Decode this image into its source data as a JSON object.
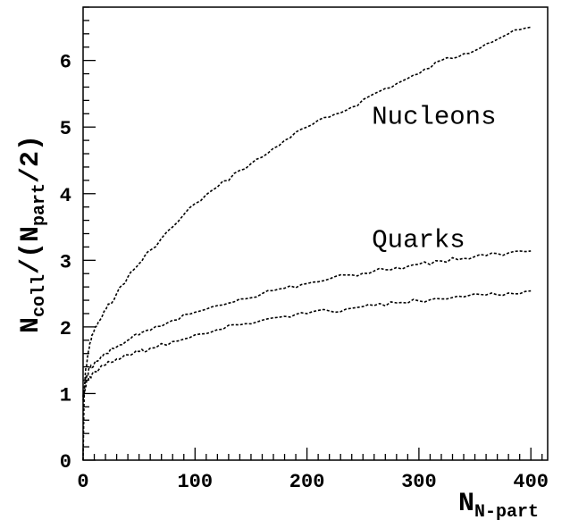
{
  "chart_data": {
    "type": "line",
    "title": "",
    "xlabel_main": "N",
    "xlabel_sub": "N-part",
    "ylabel_main": "N",
    "ylabel_sub1": "coll",
    "ylabel_mid": "/(N",
    "ylabel_sub2": "part",
    "ylabel_end": "/2)",
    "xlim": [
      0,
      415
    ],
    "ylim": [
      0,
      6.8
    ],
    "xticks": [
      "0",
      "100",
      "200",
      "300",
      "400"
    ],
    "yticks": [
      "0",
      "1",
      "2",
      "3",
      "4",
      "5",
      "6"
    ],
    "grid": false,
    "annotations": [
      {
        "text": "Nucleons",
        "x": 258,
        "y": 5.05
      },
      {
        "text": "Quarks",
        "x": 258,
        "y": 3.2
      }
    ],
    "series": [
      {
        "x": [
          0,
          1,
          2,
          4,
          6,
          10,
          15,
          20,
          30,
          40,
          50,
          60,
          80,
          100,
          120,
          140,
          160,
          180,
          200,
          220,
          240,
          260,
          280,
          300,
          320,
          340,
          360,
          380,
          400
        ],
        "values": [
          0,
          1.0,
          1.3,
          1.55,
          1.75,
          1.95,
          2.1,
          2.25,
          2.5,
          2.75,
          2.95,
          3.15,
          3.5,
          3.85,
          4.1,
          4.35,
          4.55,
          4.8,
          5.0,
          5.15,
          5.3,
          5.5,
          5.65,
          5.8,
          6.0,
          6.1,
          6.25,
          6.4,
          6.5
        ]
      },
      {
        "x": [
          0,
          2,
          4,
          6,
          10,
          15,
          20,
          30,
          40,
          50,
          60,
          80,
          100,
          120,
          140,
          160,
          180,
          200,
          220,
          240,
          260,
          280,
          300,
          320,
          340,
          360,
          380,
          400
        ],
        "values": [
          0.95,
          1.2,
          1.3,
          1.38,
          1.45,
          1.52,
          1.6,
          1.7,
          1.8,
          1.88,
          1.95,
          2.1,
          2.22,
          2.32,
          2.42,
          2.5,
          2.58,
          2.65,
          2.72,
          2.78,
          2.84,
          2.89,
          2.94,
          2.99,
          3.03,
          3.07,
          3.11,
          3.14
        ]
      },
      {
        "x": [
          0,
          2,
          4,
          6,
          10,
          15,
          20,
          30,
          40,
          50,
          60,
          80,
          100,
          120,
          140,
          160,
          180,
          200,
          220,
          240,
          260,
          280,
          300,
          320,
          340,
          360,
          380,
          400
        ],
        "values": [
          0.9,
          1.1,
          1.2,
          1.25,
          1.32,
          1.38,
          1.43,
          1.52,
          1.58,
          1.63,
          1.68,
          1.78,
          1.88,
          1.96,
          2.03,
          2.1,
          2.16,
          2.2,
          2.24,
          2.28,
          2.32,
          2.36,
          2.39,
          2.42,
          2.45,
          2.48,
          2.51,
          2.54
        ]
      }
    ]
  }
}
